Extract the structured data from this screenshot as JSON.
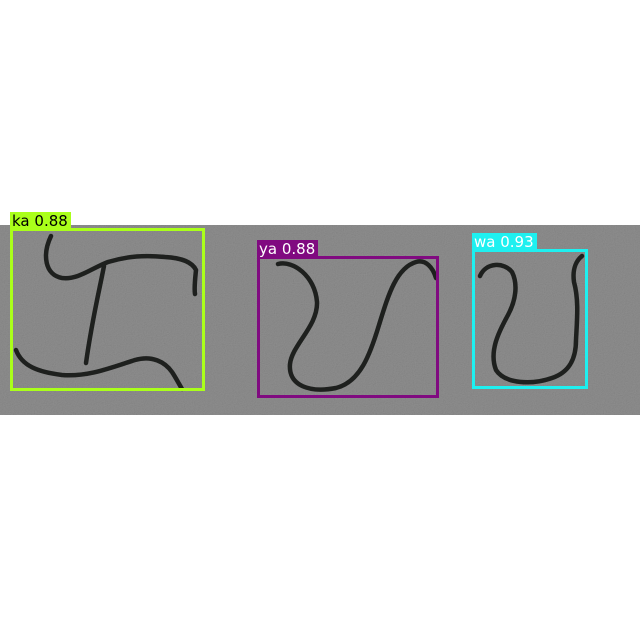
{
  "image": {
    "background_color": "#ffffff",
    "strip_color": "#8e8e8e",
    "stroke_color": "#1e201e"
  },
  "detections": [
    {
      "label": "ka",
      "confidence": "0.88",
      "color": "#aaff1a",
      "text_color": "#000000"
    },
    {
      "label": "ya",
      "confidence": "0.88",
      "color": "#800a80",
      "text_color": "#ffffff"
    },
    {
      "label": "wa",
      "confidence": "0.93",
      "color": "#1ef0f0",
      "text_color": "#ffffff"
    }
  ]
}
